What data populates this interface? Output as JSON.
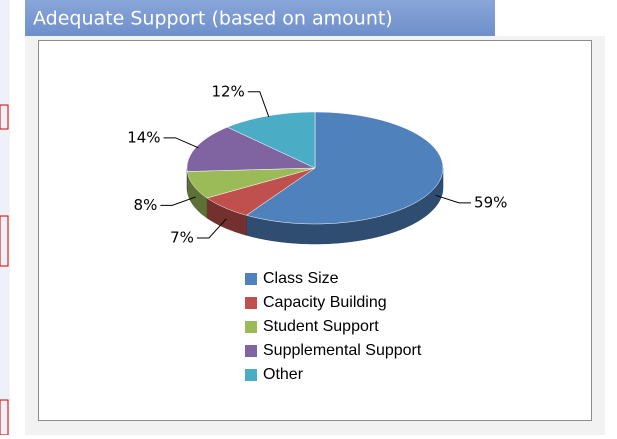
{
  "chart_data": {
    "type": "pie",
    "title": "Adequate Support (based on amount)",
    "categories": [
      "Class Size",
      "Capacity Building",
      "Student Support",
      "Supplemental Support",
      "Other"
    ],
    "values": [
      59,
      7,
      8,
      14,
      12
    ],
    "value_labels": [
      "59%",
      "7%",
      "8%",
      "14%",
      "12%"
    ],
    "colors": [
      "#4f81bd",
      "#c0504d",
      "#9bbb59",
      "#8064a2",
      "#4bacc6"
    ],
    "legend": "bottom"
  }
}
